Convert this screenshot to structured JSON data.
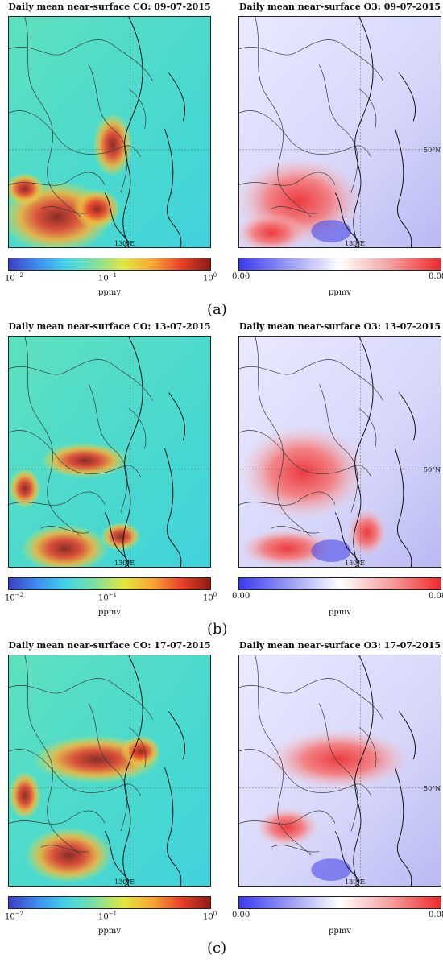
{
  "panels": [
    {
      "caption": "(a)",
      "co": {
        "title": "Daily mean near-surface CO: 09-07-2015",
        "lon_label": "130°E",
        "lat_label": "",
        "hotspot": "south"
      },
      "o3": {
        "title": "Daily mean near-surface O3: 09-07-2015",
        "lon_label": "130°E",
        "lat_label": "50°N",
        "hotspot": "south"
      }
    },
    {
      "caption": "(b)",
      "co": {
        "title": "Daily mean near-surface CO: 13-07-2015",
        "lon_label": "130°E",
        "lat_label": "",
        "hotspot": "mid"
      },
      "o3": {
        "title": "Daily mean near-surface O3: 13-07-2015",
        "lon_label": "130°E",
        "lat_label": "50°N",
        "hotspot": "mid"
      }
    },
    {
      "caption": "(c)",
      "co": {
        "title": "Daily mean near-surface CO: 17-07-2015",
        "lon_label": "130°E",
        "lat_label": "",
        "hotspot": "north"
      },
      "o3": {
        "title": "Daily mean near-surface O3: 17-07-2015",
        "lon_label": "130°E",
        "lat_label": "50°N",
        "hotspot": "north"
      }
    }
  ],
  "co_colorbar": {
    "min_label": "10",
    "min_exp": "−2",
    "mid_label": "10",
    "mid_exp": "−1",
    "max_label": "10",
    "max_exp": "0",
    "unit": "ppmv",
    "colors": [
      "#3b3fc0",
      "#3f8ef0",
      "#44d3e6",
      "#7fe0a0",
      "#e3e640",
      "#f6a634",
      "#e8402a",
      "#8e1b14"
    ]
  },
  "o3_colorbar": {
    "min_label": "0.00",
    "max_label": "0.08",
    "unit": "ppmv",
    "colors": [
      "#3a3af0",
      "#9b9cf3",
      "#ffffff",
      "#f5a0a0",
      "#ee2a2a"
    ]
  }
}
